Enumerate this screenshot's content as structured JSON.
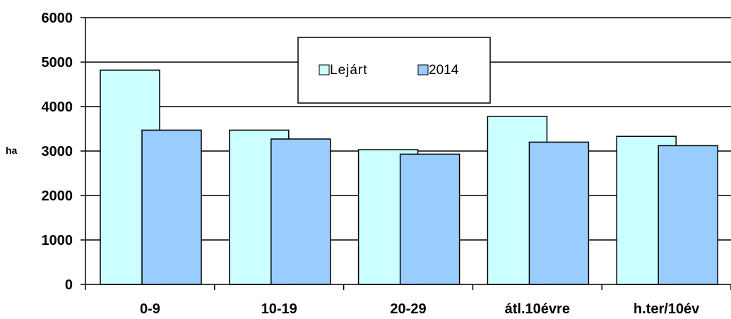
{
  "chart_data": {
    "type": "bar",
    "categories": [
      "0-9",
      "10-19",
      "20-29",
      "átl.10évre",
      "h.ter/10év"
    ],
    "series": [
      {
        "name": "Lejárt",
        "values": [
          4820,
          3470,
          3030,
          3780,
          3330
        ],
        "color": "#ccffff"
      },
      {
        "name": "2014",
        "values": [
          3470,
          3270,
          2930,
          3200,
          3120
        ],
        "color": "#99ccff"
      }
    ],
    "ylabel": "ha",
    "ylim": [
      0,
      6000
    ],
    "yticks": [
      "0",
      "1000",
      "2000",
      "3000",
      "4000",
      "5000",
      "6000"
    ],
    "grid": true,
    "legend_position": "top-center"
  }
}
